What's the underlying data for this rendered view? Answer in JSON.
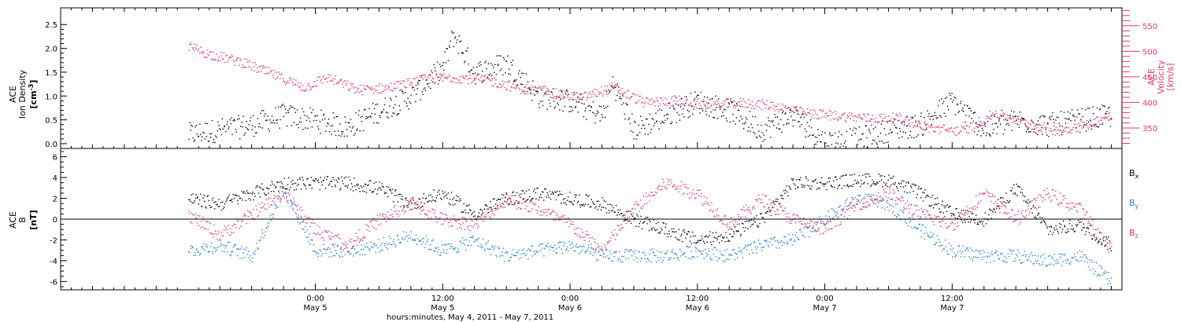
{
  "chart_data": [
    {
      "type": "scatter",
      "panel": "top",
      "left_axis": {
        "label_lines": [
          "ACE",
          "Ion Density"
        ],
        "unit": "[cm",
        "unit_sup": "-3",
        "unit_close": "]",
        "range": [
          -0.1,
          2.85
        ],
        "ticks": [
          0.0,
          0.5,
          1.0,
          1.5,
          2.0,
          2.5
        ],
        "tick_labels": [
          "0.0",
          "0.5",
          "1.0",
          "1.5",
          "2.0",
          "2.5"
        ],
        "color": "#000000"
      },
      "right_axis": {
        "label_lines": [
          "ACE",
          "Velocity"
        ],
        "unit": "[km/s]",
        "range": [
          310,
          585
        ],
        "ticks": [
          350,
          400,
          450,
          500,
          550
        ],
        "tick_labels": [
          "350",
          "400",
          "450",
          "500",
          "550"
        ],
        "color": "#e8336b"
      },
      "series": [
        {
          "color": "#000000",
          "axis": "left",
          "x_hours": [
            0,
            3,
            6,
            9,
            12,
            15,
            18,
            21,
            24,
            25,
            27,
            30,
            33,
            36,
            39,
            40,
            42,
            45,
            48,
            51,
            54,
            57,
            60,
            63,
            66,
            69,
            72,
            75,
            78,
            81,
            84,
            87
          ],
          "y": [
            0.2,
            0.3,
            0.4,
            0.6,
            0.5,
            0.35,
            0.7,
            1.0,
            1.6,
            2.3,
            1.5,
            1.7,
            1.0,
            0.9,
            0.6,
            1.3,
            0.3,
            0.6,
            0.9,
            0.7,
            0.3,
            0.6,
            0.05,
            0.1,
            0.3,
            0.4,
            0.9,
            0.3,
            0.5,
            0.4,
            0.5,
            0.6
          ]
        },
        {
          "color": "#e8336b",
          "axis": "right",
          "x_hours": [
            0,
            2,
            5,
            8,
            11,
            13,
            16,
            19,
            22,
            25,
            28,
            31,
            34,
            37,
            40,
            43,
            46,
            49,
            52,
            55,
            58,
            61,
            64,
            67,
            70,
            73,
            76,
            79,
            82,
            85,
            87
          ],
          "y": [
            510,
            495,
            480,
            455,
            430,
            450,
            425,
            430,
            445,
            450,
            445,
            430,
            420,
            410,
            430,
            400,
            405,
            395,
            400,
            395,
            380,
            375,
            370,
            370,
            350,
            345,
            380,
            360,
            345,
            360,
            375
          ]
        }
      ]
    },
    {
      "type": "scatter",
      "panel": "bottom",
      "left_axis": {
        "label_lines": [
          "ACE",
          "B"
        ],
        "unit": "[nT]",
        "range": [
          -6.8,
          6.8
        ],
        "ticks": [
          -6,
          -4,
          -2,
          0,
          2,
          4,
          6
        ],
        "tick_labels": [
          "-6",
          "-4",
          "-2",
          "0",
          "2",
          "4",
          "6"
        ]
      },
      "zero_line": true,
      "series": [
        {
          "name": "B",
          "subscript": "x",
          "color": "#000000",
          "x_hours": [
            0,
            3,
            6,
            9,
            12,
            15,
            18,
            21,
            24,
            27,
            30,
            33,
            36,
            39,
            42,
            45,
            48,
            51,
            54,
            57,
            60,
            63,
            66,
            69,
            72,
            75,
            78,
            81,
            84,
            87
          ],
          "y": [
            2,
            1.5,
            2.5,
            3.5,
            3.5,
            3.5,
            3,
            1.5,
            2.5,
            0.5,
            2,
            2.5,
            2,
            1.5,
            0,
            -1,
            -2,
            -1.5,
            0,
            3.5,
            3.5,
            3.8,
            3.8,
            2.5,
            0.5,
            0,
            3,
            -1,
            -0.5,
            -2.5
          ]
        },
        {
          "name": "B",
          "subscript": "y",
          "color": "#1e7fd9",
          "x_hours": [
            0,
            3,
            6,
            9,
            12,
            15,
            18,
            21,
            24,
            27,
            30,
            33,
            36,
            39,
            42,
            45,
            48,
            51,
            54,
            57,
            60,
            63,
            66,
            69,
            72,
            75,
            78,
            81,
            84,
            87
          ],
          "y": [
            -3,
            -2.5,
            -3.5,
            3,
            -3,
            -3,
            -2.5,
            -1.5,
            -3,
            -2,
            -3.5,
            -3,
            -2.5,
            -3.5,
            -3.5,
            -3.5,
            -3,
            -3.5,
            -2.5,
            -2,
            0,
            2,
            1.5,
            -1,
            -3,
            -3.5,
            -3.5,
            -4,
            -3.5,
            -6
          ]
        },
        {
          "name": "B",
          "subscript": "z",
          "color": "#e8336b",
          "x_hours": [
            0,
            3,
            6,
            9,
            12,
            15,
            18,
            21,
            24,
            27,
            30,
            33,
            36,
            39,
            42,
            45,
            48,
            51,
            54,
            57,
            60,
            63,
            66,
            69,
            72,
            75,
            78,
            81,
            84,
            87
          ],
          "y": [
            0.5,
            -1.5,
            0.5,
            2.5,
            -1,
            -2.5,
            0,
            1.5,
            0,
            -0.5,
            2,
            1,
            -0.5,
            -3,
            1,
            3.5,
            2.5,
            -0.5,
            2,
            0,
            -1,
            1.5,
            2.5,
            0.5,
            -0.5,
            2.5,
            0,
            2.5,
            1,
            -3
          ]
        }
      ]
    }
  ],
  "x_axis": {
    "range_hours": [
      -12,
      88
    ],
    "ticks": [
      {
        "hours": 12,
        "time": "0:00",
        "date": "May  5"
      },
      {
        "hours": 24,
        "time": "12:00",
        "date": "May  5"
      },
      {
        "hours": 36,
        "time": "0:00",
        "date": "May  6"
      },
      {
        "hours": 48,
        "time": "12:00",
        "date": "May  6"
      },
      {
        "hours": 60,
        "time": "0:00",
        "date": "May  7"
      },
      {
        "hours": 72,
        "time": "12:00",
        "date": "May  7"
      }
    ],
    "xlabel": "hours:minutes, May  4, 2011 - May  7, 2011"
  }
}
